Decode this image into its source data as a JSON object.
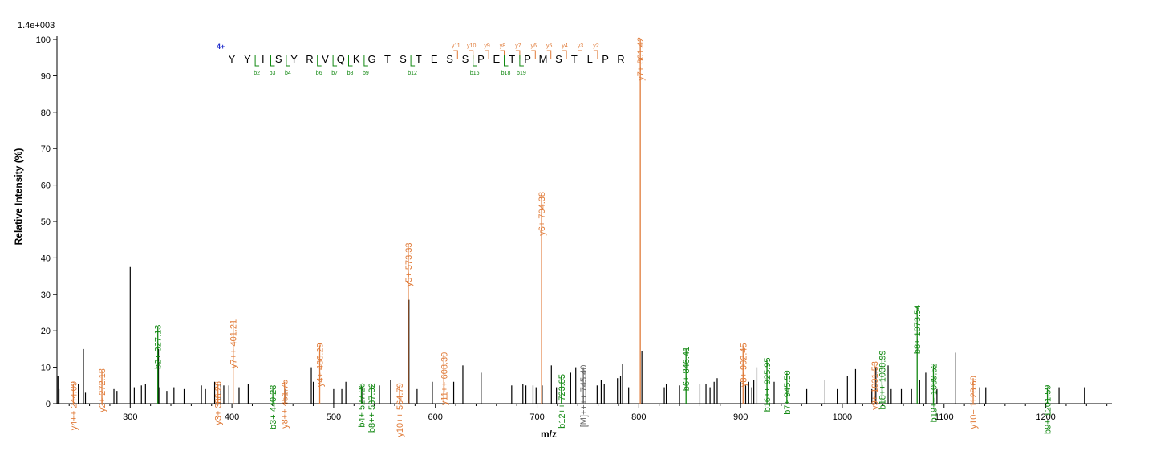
{
  "chart_data": {
    "type": "bar",
    "scale_label": "1.4e+003",
    "xlabel": "m/z",
    "ylabel": "Relative   Intensity (%)",
    "xlim": [
      228,
      1265
    ],
    "ylim": [
      0,
      100
    ],
    "xticks": [
      300,
      400,
      500,
      600,
      700,
      800,
      900,
      1000,
      1100,
      1200
    ],
    "yticks": [
      0,
      10,
      20,
      30,
      40,
      50,
      60,
      70,
      80,
      90,
      100
    ],
    "colors": {
      "y_ion": "#e07b39",
      "b_ion": "#118811",
      "other_ion": "#666666",
      "unmatched": "#000000",
      "charge": "#1f2ccc"
    },
    "peptide": {
      "charge": "4+",
      "sequence": [
        "Y",
        "Y",
        "I",
        "S",
        "Y",
        "R",
        "V",
        "Q",
        "K",
        "G",
        "T",
        "S",
        "T",
        "E",
        "S",
        "S",
        "P",
        "E",
        "T",
        "P",
        "M",
        "S",
        "T",
        "L",
        "P",
        "R"
      ],
      "y_ions": [
        {
          "label": "y11",
          "after": 15
        },
        {
          "label": "y10",
          "after": 16
        },
        {
          "label": "y9",
          "after": 17
        },
        {
          "label": "y8",
          "after": 18
        },
        {
          "label": "y7",
          "after": 19
        },
        {
          "label": "y6",
          "after": 20
        },
        {
          "label": "y5",
          "after": 21
        },
        {
          "label": "y4",
          "after": 22
        },
        {
          "label": "y3",
          "after": 23
        },
        {
          "label": "y2",
          "after": 24
        }
      ],
      "b_ions": [
        {
          "label": "b2",
          "after": 2
        },
        {
          "label": "b3",
          "after": 3
        },
        {
          "label": "b4",
          "after": 4
        },
        {
          "label": "b6",
          "after": 6
        },
        {
          "label": "b7",
          "after": 7
        },
        {
          "label": "b8",
          "after": 8
        },
        {
          "label": "b9",
          "after": 9
        },
        {
          "label": "b12",
          "after": 12
        },
        {
          "label": "b16",
          "after": 16
        },
        {
          "label": "b18",
          "after": 18
        },
        {
          "label": "b19",
          "after": 19
        }
      ]
    },
    "annotated_peaks": [
      {
        "mz": 244.09,
        "intensity": 5.5,
        "label": "y4++ 244.09",
        "ion": "y"
      },
      {
        "mz": 272.18,
        "intensity": 9,
        "label": "y2+ 272.18",
        "ion": "y"
      },
      {
        "mz": 327.13,
        "intensity": 21,
        "label": "b2+ 327.13",
        "ion": "b"
      },
      {
        "mz": 386.26,
        "intensity": 5.5,
        "label": "y3+ 386.26",
        "ion": "y"
      },
      {
        "mz": 401.21,
        "intensity": 22.5,
        "label": "y7++ 401.21",
        "ion": "y"
      },
      {
        "mz": 440.23,
        "intensity": 4.5,
        "label": "b3+ 440.23",
        "ion": "b"
      },
      {
        "mz": 451.75,
        "intensity": 6,
        "label": "y8++ 451.75",
        "ion": "y"
      },
      {
        "mz": 486.29,
        "intensity": 16,
        "label": "y4+ 486.29",
        "ion": "y"
      },
      {
        "mz": 527.26,
        "intensity": 5,
        "label": "b4+ 527.26",
        "ion": "b"
      },
      {
        "mz": 537.32,
        "intensity": 5,
        "label": "b8++ 537.32",
        "ion": "b"
      },
      {
        "mz": 564.79,
        "intensity": 5,
        "label": "y10++ 564.79",
        "ion": "y"
      },
      {
        "mz": 573.33,
        "intensity": 43.5,
        "label": "y5+ 573.33",
        "ion": "y"
      },
      {
        "mz": 608.3,
        "intensity": 13.5,
        "label": "y11++ 608.30",
        "ion": "y"
      },
      {
        "mz": 704.38,
        "intensity": 57.5,
        "label": "y6+ 704.38",
        "ion": "y"
      },
      {
        "mz": 723.85,
        "intensity": 7.5,
        "label": "b12++ 723.85",
        "ion": "b"
      },
      {
        "mz": 745.4,
        "intensity": 10,
        "label": "[M]++++ 745.40",
        "ion": "other"
      },
      {
        "mz": 801.42,
        "intensity": 100,
        "label": "y7+ 801.42",
        "ion": "y"
      },
      {
        "mz": 846.41,
        "intensity": 15,
        "label": "b6+ 846.41",
        "ion": "b"
      },
      {
        "mz": 902.45,
        "intensity": 16,
        "label": "y8+ 902.45",
        "ion": "y"
      },
      {
        "mz": 925.95,
        "intensity": 12,
        "label": "b16++ 925.95",
        "ion": "b"
      },
      {
        "mz": 945.5,
        "intensity": 8.5,
        "label": "b7+ 945.50",
        "ion": "b"
      },
      {
        "mz": 1031.53,
        "intensity": 11,
        "label": "y9+ 1031.53",
        "ion": "y"
      },
      {
        "mz": 1038.99,
        "intensity": 14,
        "label": "b18++ 1038.99",
        "ion": "b"
      },
      {
        "mz": 1073.54,
        "intensity": 26.5,
        "label": "b8+ 1073.54",
        "ion": "b"
      },
      {
        "mz": 1089.52,
        "intensity": 10.5,
        "label": "b19++ 1089.52",
        "ion": "b"
      },
      {
        "mz": 1128.6,
        "intensity": 7,
        "label": "y10+ 1128.60",
        "ion": "y"
      },
      {
        "mz": 1201.59,
        "intensity": 4.5,
        "label": "b9+ 1201.59",
        "ion": "b"
      }
    ],
    "unmatched_peaks": [
      {
        "mz": 229,
        "intensity": 7.5
      },
      {
        "mz": 230,
        "intensity": 4
      },
      {
        "mz": 249,
        "intensity": 5.5
      },
      {
        "mz": 254,
        "intensity": 15
      },
      {
        "mz": 256,
        "intensity": 3
      },
      {
        "mz": 284,
        "intensity": 4
      },
      {
        "mz": 287,
        "intensity": 3.5
      },
      {
        "mz": 300,
        "intensity": 37.5
      },
      {
        "mz": 304,
        "intensity": 4.5
      },
      {
        "mz": 311,
        "intensity": 5
      },
      {
        "mz": 315,
        "intensity": 5.5
      },
      {
        "mz": 327.8,
        "intensity": 15
      },
      {
        "mz": 329,
        "intensity": 4.5
      },
      {
        "mz": 336,
        "intensity": 3.5
      },
      {
        "mz": 343,
        "intensity": 4.5
      },
      {
        "mz": 353,
        "intensity": 4
      },
      {
        "mz": 370,
        "intensity": 5
      },
      {
        "mz": 374,
        "intensity": 4
      },
      {
        "mz": 383,
        "intensity": 6
      },
      {
        "mz": 389,
        "intensity": 5.5
      },
      {
        "mz": 392,
        "intensity": 5
      },
      {
        "mz": 397,
        "intensity": 5
      },
      {
        "mz": 407,
        "intensity": 4.5
      },
      {
        "mz": 416,
        "intensity": 5.5
      },
      {
        "mz": 453,
        "intensity": 4
      },
      {
        "mz": 478,
        "intensity": 10
      },
      {
        "mz": 480,
        "intensity": 6
      },
      {
        "mz": 500,
        "intensity": 4
      },
      {
        "mz": 508,
        "intensity": 4
      },
      {
        "mz": 512,
        "intensity": 6
      },
      {
        "mz": 528.5,
        "intensity": 4.5
      },
      {
        "mz": 545,
        "intensity": 5
      },
      {
        "mz": 556,
        "intensity": 6.5
      },
      {
        "mz": 574,
        "intensity": 28.5
      },
      {
        "mz": 582,
        "intensity": 4
      },
      {
        "mz": 597,
        "intensity": 6
      },
      {
        "mz": 618,
        "intensity": 6
      },
      {
        "mz": 627,
        "intensity": 10.5
      },
      {
        "mz": 645,
        "intensity": 8.5
      },
      {
        "mz": 675,
        "intensity": 5
      },
      {
        "mz": 686,
        "intensity": 5.5
      },
      {
        "mz": 689,
        "intensity": 5
      },
      {
        "mz": 696,
        "intensity": 5
      },
      {
        "mz": 699,
        "intensity": 4.5
      },
      {
        "mz": 705,
        "intensity": 5
      },
      {
        "mz": 714,
        "intensity": 10.5
      },
      {
        "mz": 719,
        "intensity": 4.5
      },
      {
        "mz": 733,
        "intensity": 8.5
      },
      {
        "mz": 738,
        "intensity": 10
      },
      {
        "mz": 748,
        "intensity": 9
      },
      {
        "mz": 759,
        "intensity": 5
      },
      {
        "mz": 763,
        "intensity": 6.5
      },
      {
        "mz": 766,
        "intensity": 5.5
      },
      {
        "mz": 779,
        "intensity": 7
      },
      {
        "mz": 782,
        "intensity": 7.5
      },
      {
        "mz": 784,
        "intensity": 11
      },
      {
        "mz": 790,
        "intensity": 4.5
      },
      {
        "mz": 803,
        "intensity": 14.5
      },
      {
        "mz": 825,
        "intensity": 4.5
      },
      {
        "mz": 827,
        "intensity": 5.5
      },
      {
        "mz": 840,
        "intensity": 5
      },
      {
        "mz": 860,
        "intensity": 5.5
      },
      {
        "mz": 866,
        "intensity": 5.5
      },
      {
        "mz": 870,
        "intensity": 4.5
      },
      {
        "mz": 874,
        "intensity": 6
      },
      {
        "mz": 877,
        "intensity": 7
      },
      {
        "mz": 900,
        "intensity": 6
      },
      {
        "mz": 905,
        "intensity": 5
      },
      {
        "mz": 908,
        "intensity": 6
      },
      {
        "mz": 911,
        "intensity": 4.5
      },
      {
        "mz": 913,
        "intensity": 6.5
      },
      {
        "mz": 916,
        "intensity": 10
      },
      {
        "mz": 933,
        "intensity": 6
      },
      {
        "mz": 965,
        "intensity": 4
      },
      {
        "mz": 983,
        "intensity": 6.5
      },
      {
        "mz": 995,
        "intensity": 4
      },
      {
        "mz": 1005,
        "intensity": 7.5
      },
      {
        "mz": 1013,
        "intensity": 9.5
      },
      {
        "mz": 1029,
        "intensity": 4
      },
      {
        "mz": 1033,
        "intensity": 10
      },
      {
        "mz": 1045,
        "intensity": 10.5
      },
      {
        "mz": 1048,
        "intensity": 4
      },
      {
        "mz": 1058,
        "intensity": 4
      },
      {
        "mz": 1068,
        "intensity": 4
      },
      {
        "mz": 1076,
        "intensity": 6.5
      },
      {
        "mz": 1082,
        "intensity": 8.5
      },
      {
        "mz": 1093,
        "intensity": 4
      },
      {
        "mz": 1111,
        "intensity": 14
      },
      {
        "mz": 1135,
        "intensity": 4.5
      },
      {
        "mz": 1141,
        "intensity": 4.5
      },
      {
        "mz": 1213,
        "intensity": 4.5
      },
      {
        "mz": 1238,
        "intensity": 4.5
      }
    ]
  }
}
